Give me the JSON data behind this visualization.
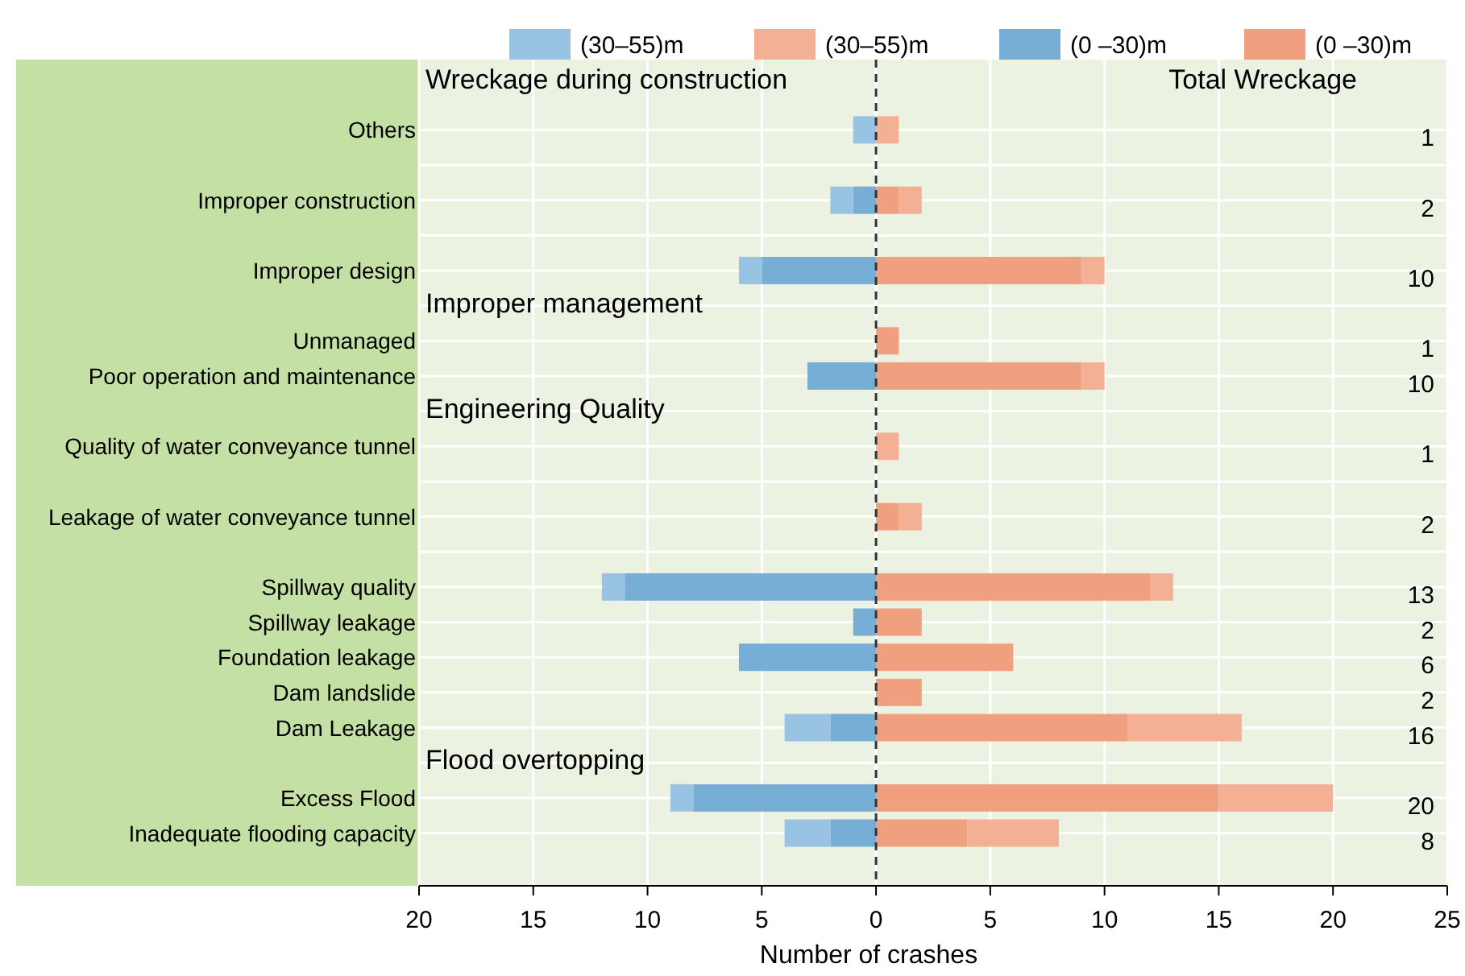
{
  "chart_data": {
    "type": "bar",
    "orientation": "horizontal",
    "stacked": true,
    "xlabel": "Number of crashes",
    "categories": [
      "Others",
      null,
      "Improper construction",
      null,
      "Improper design",
      null,
      "Unmanaged",
      "Poor operation and maintenance",
      null,
      "Quality of water conveyance tunnel",
      null,
      "Leakage of water conveyance tunnel",
      null,
      "Spillway quality",
      "Spillway leakage",
      "Foundation leakage",
      "Dam landslide",
      "Dam Leakage",
      null,
      "Excess Flood",
      "Inadequate flooding capacity"
    ],
    "series": [
      {
        "name": "(0 –30)m",
        "color": "#77aed6",
        "values": [
          0,
          null,
          -1,
          null,
          -5,
          null,
          0,
          -3,
          null,
          0,
          null,
          0,
          null,
          -11,
          -1,
          -6,
          0,
          -2,
          null,
          -8,
          -2
        ]
      },
      {
        "name": "(0 –30)m",
        "color": "#f0a07e",
        "values": [
          0,
          null,
          1,
          null,
          9,
          null,
          1,
          9,
          null,
          0,
          null,
          1,
          null,
          12,
          2,
          6,
          2,
          11,
          null,
          15,
          4
        ]
      },
      {
        "name": "(30–55)m",
        "color": "#98c3e2",
        "values": [
          -1,
          null,
          -1,
          null,
          -1,
          null,
          0,
          0,
          null,
          0,
          null,
          0,
          null,
          -1,
          0,
          0,
          0,
          -2,
          null,
          -1,
          -2
        ]
      },
      {
        "name": "(30–55)m",
        "color": "#f3b095",
        "values": [
          1,
          null,
          1,
          null,
          1,
          null,
          0,
          1,
          null,
          1,
          null,
          1,
          null,
          1,
          0,
          0,
          0,
          5,
          null,
          5,
          4
        ]
      }
    ],
    "xlim": [
      -20,
      25
    ],
    "xticks": [
      {
        "value": -20,
        "label": "20"
      },
      {
        "value": -15,
        "label": "15"
      },
      {
        "value": -10,
        "label": "10"
      },
      {
        "value": -5,
        "label": "5"
      },
      0,
      5,
      10,
      15,
      20,
      25
    ],
    "ref_lines": [
      {
        "axis": "x",
        "value": 0,
        "line_style": "dashed",
        "color": "#333333"
      }
    ],
    "annotations": [
      "Wreckage during construction",
      "Total Wreckage",
      "Improper management",
      "Engineering Quality",
      "Flood overtopping",
      "1",
      "2",
      "10",
      "1",
      "10",
      "1",
      "2",
      "13",
      "2",
      "6",
      "2",
      "16",
      "20",
      "8"
    ],
    "grid": true,
    "legend": "top"
  }
}
